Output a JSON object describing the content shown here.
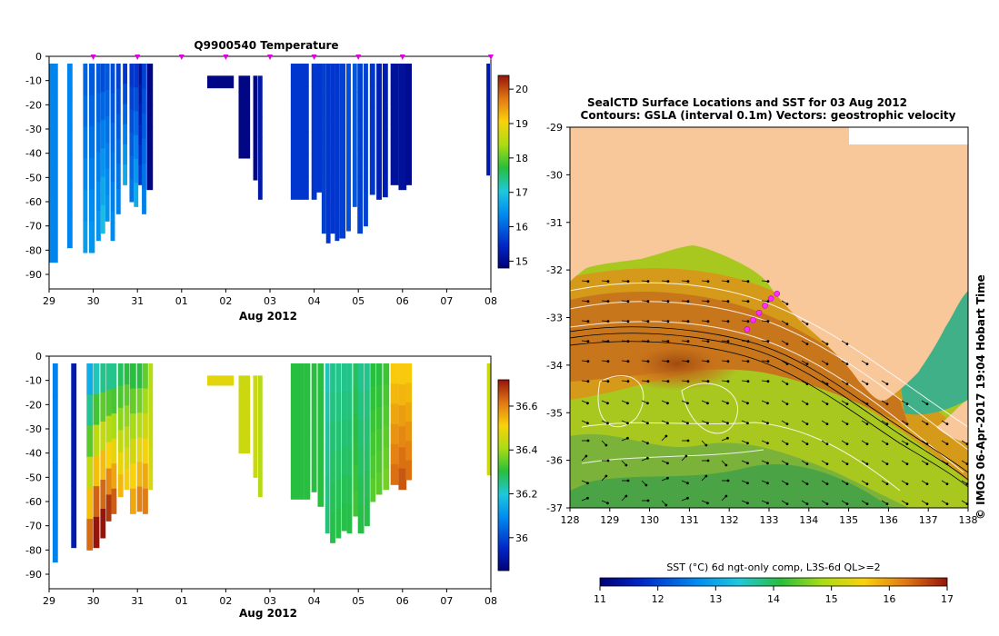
{
  "page": {
    "credit": "© IMOS 06-Apr-2017 19:04 Hobart Time"
  },
  "chart_data": [
    {
      "id": "temperature-section",
      "type": "heatmap",
      "title": "Q9900540  Temperature",
      "xlabel": "Aug 2012",
      "ylabel": "",
      "x_ticks": [
        "29",
        "30",
        "31",
        "01",
        "02",
        "03",
        "04",
        "05",
        "06",
        "07",
        "08"
      ],
      "y_ticks": [
        0,
        -10,
        -20,
        -30,
        -40,
        -50,
        -60,
        -70,
        -80,
        -90
      ],
      "ylim": [
        -96,
        0
      ],
      "variable": "Temperature",
      "units": "°C",
      "colorbar": {
        "min": 14.8,
        "max": 20.4,
        "ticks": [
          15,
          16,
          17,
          18,
          19,
          20
        ]
      },
      "profile_markers_day": [
        1,
        2,
        3,
        4,
        5,
        6,
        7,
        8,
        10
      ],
      "profiles": [
        {
          "day": 0.1,
          "width": 0.2,
          "top": -3,
          "bottom": -85,
          "value": 16.3,
          "trend": 0
        },
        {
          "day": 0.47,
          "width": 0.12,
          "top": -3,
          "bottom": -79,
          "value": 16.3,
          "trend": 0
        },
        {
          "day": 0.82,
          "width": 0.1,
          "top": -3,
          "bottom": -81,
          "value": 16.0,
          "trend": 0.1
        },
        {
          "day": 0.97,
          "width": 0.13,
          "top": -3,
          "bottom": -81,
          "value": 15.9,
          "trend": 0.1
        },
        {
          "day": 1.12,
          "width": 0.1,
          "top": -3,
          "bottom": -76,
          "value": 15.9,
          "trend": 0.1
        },
        {
          "day": 1.22,
          "width": 0.1,
          "top": -3,
          "bottom": -73,
          "value": 15.8,
          "trend": 0.2
        },
        {
          "day": 1.32,
          "width": 0.1,
          "top": -3,
          "bottom": -68,
          "value": 15.9,
          "trend": 0.1
        },
        {
          "day": 1.44,
          "width": 0.1,
          "top": -3,
          "bottom": -76,
          "value": 15.8,
          "trend": 0.1
        },
        {
          "day": 1.57,
          "width": 0.1,
          "top": -3,
          "bottom": -65,
          "value": 15.7,
          "trend": 0.1
        },
        {
          "day": 1.72,
          "width": 0.1,
          "top": -3,
          "bottom": -53,
          "value": 15.6,
          "trend": 0.2
        },
        {
          "day": 1.87,
          "width": 0.1,
          "top": -3,
          "bottom": -60,
          "value": 15.6,
          "trend": 0.1
        },
        {
          "day": 1.97,
          "width": 0.1,
          "top": -3,
          "bottom": -62,
          "value": 15.6,
          "trend": 0.2
        },
        {
          "day": 2.07,
          "width": 0.1,
          "top": -3,
          "bottom": -53,
          "value": 15.1,
          "trend": 0.1
        },
        {
          "day": 2.15,
          "width": 0.1,
          "top": -3,
          "bottom": -65,
          "value": 15.7,
          "trend": 0.1
        },
        {
          "day": 2.28,
          "width": 0.14,
          "top": -3,
          "bottom": -55,
          "value": 14.9,
          "trend": 0
        },
        {
          "day": 3.88,
          "width": 0.6,
          "top": -8,
          "bottom": -13,
          "value": 14.9,
          "trend": 0
        },
        {
          "day": 4.42,
          "width": 0.26,
          "top": -8,
          "bottom": -42,
          "value": 14.9,
          "trend": 0
        },
        {
          "day": 4.67,
          "width": 0.1,
          "top": -8,
          "bottom": -51,
          "value": 14.9,
          "trend": 0
        },
        {
          "day": 4.78,
          "width": 0.1,
          "top": -8,
          "bottom": -59,
          "value": 15.2,
          "trend": 0
        },
        {
          "day": 5.62,
          "width": 0.3,
          "top": -3,
          "bottom": -59,
          "value": 15.6,
          "trend": 0
        },
        {
          "day": 5.82,
          "width": 0.12,
          "top": -3,
          "bottom": -59,
          "value": 15.6,
          "trend": 0
        },
        {
          "day": 6.0,
          "width": 0.12,
          "top": -3,
          "bottom": -59,
          "value": 15.6,
          "trend": 0
        },
        {
          "day": 6.12,
          "width": 0.12,
          "top": -3,
          "bottom": -56,
          "value": 15.6,
          "trend": 0
        },
        {
          "day": 6.22,
          "width": 0.1,
          "top": -3,
          "bottom": -73,
          "value": 15.7,
          "trend": 0
        },
        {
          "day": 6.32,
          "width": 0.1,
          "top": -3,
          "bottom": -77,
          "value": 15.6,
          "trend": 0
        },
        {
          "day": 6.42,
          "width": 0.1,
          "top": -3,
          "bottom": -73,
          "value": 15.6,
          "trend": 0
        },
        {
          "day": 6.52,
          "width": 0.1,
          "top": -3,
          "bottom": -76,
          "value": 15.6,
          "trend": 0
        },
        {
          "day": 6.64,
          "width": 0.14,
          "top": -3,
          "bottom": -75,
          "value": 15.7,
          "trend": 0
        },
        {
          "day": 6.78,
          "width": 0.1,
          "top": -3,
          "bottom": -72,
          "value": 15.8,
          "trend": 0
        },
        {
          "day": 6.92,
          "width": 0.1,
          "top": -3,
          "bottom": -62,
          "value": 15.9,
          "trend": 0
        },
        {
          "day": 7.04,
          "width": 0.12,
          "top": -3,
          "bottom": -73,
          "value": 15.7,
          "trend": 0
        },
        {
          "day": 7.17,
          "width": 0.1,
          "top": -3,
          "bottom": -70,
          "value": 15.7,
          "trend": 0
        },
        {
          "day": 7.32,
          "width": 0.12,
          "top": -3,
          "bottom": -57,
          "value": 15.6,
          "trend": 0
        },
        {
          "day": 7.47,
          "width": 0.12,
          "top": -3,
          "bottom": -59,
          "value": 15.3,
          "trend": 0
        },
        {
          "day": 7.61,
          "width": 0.12,
          "top": -3,
          "bottom": -58,
          "value": 15.3,
          "trend": 0
        },
        {
          "day": 7.82,
          "width": 0.18,
          "top": -3,
          "bottom": -53,
          "value": 15.1,
          "trend": 0
        },
        {
          "day": 8.0,
          "width": 0.18,
          "top": -3,
          "bottom": -55,
          "value": 15.1,
          "trend": 0
        },
        {
          "day": 8.14,
          "width": 0.14,
          "top": -3,
          "bottom": -53,
          "value": 15.0,
          "trend": 0
        },
        {
          "day": 9.94,
          "width": 0.08,
          "top": -3,
          "bottom": -49,
          "value": 15.2,
          "trend": 0
        }
      ]
    },
    {
      "id": "salinity-section",
      "type": "heatmap",
      "title": "",
      "xlabel": "Aug 2012",
      "ylabel": "",
      "x_ticks": [
        "29",
        "30",
        "31",
        "01",
        "02",
        "03",
        "04",
        "05",
        "06",
        "07",
        "08"
      ],
      "y_ticks": [
        0,
        -10,
        -20,
        -30,
        -40,
        -50,
        -60,
        -70,
        -80,
        -90
      ],
      "ylim": [
        -96,
        0
      ],
      "variable": "Salinity",
      "units": "",
      "colorbar": {
        "min": 35.85,
        "max": 36.72,
        "ticks": [
          36.0,
          36.2,
          36.4,
          36.6
        ]
      },
      "profiles": [
        {
          "day": 0.14,
          "width": 0.12,
          "top": -3,
          "bottom": -85,
          "value": 36.08,
          "trend": 0
        },
        {
          "day": 0.56,
          "width": 0.12,
          "top": -3,
          "bottom": -79,
          "value": 35.92,
          "trend": 0
        },
        {
          "day": 0.92,
          "width": 0.14,
          "top": -3,
          "bottom": -80,
          "value": 36.15,
          "trend": 0.55
        },
        {
          "day": 1.07,
          "width": 0.14,
          "top": -3,
          "bottom": -79,
          "value": 36.22,
          "trend": 0.6
        },
        {
          "day": 1.22,
          "width": 0.12,
          "top": -3,
          "bottom": -75,
          "value": 36.25,
          "trend": 0.55
        },
        {
          "day": 1.35,
          "width": 0.12,
          "top": -3,
          "bottom": -68,
          "value": 36.25,
          "trend": 0.5
        },
        {
          "day": 1.47,
          "width": 0.12,
          "top": -3,
          "bottom": -65,
          "value": 36.25,
          "trend": 0.45
        },
        {
          "day": 1.62,
          "width": 0.12,
          "top": -3,
          "bottom": -58,
          "value": 36.28,
          "trend": 0.3
        },
        {
          "day": 1.76,
          "width": 0.12,
          "top": -3,
          "bottom": -55,
          "value": 36.3,
          "trend": 0.25
        },
        {
          "day": 1.9,
          "width": 0.14,
          "top": -3,
          "bottom": -65,
          "value": 36.3,
          "trend": 0.3
        },
        {
          "day": 2.05,
          "width": 0.12,
          "top": -3,
          "bottom": -64,
          "value": 36.3,
          "trend": 0.35
        },
        {
          "day": 2.18,
          "width": 0.12,
          "top": -3,
          "bottom": -65,
          "value": 36.35,
          "trend": 0.3
        },
        {
          "day": 2.3,
          "width": 0.1,
          "top": -3,
          "bottom": -55,
          "value": 36.42,
          "trend": 0.05
        },
        {
          "day": 3.88,
          "width": 0.6,
          "top": -8,
          "bottom": -12,
          "value": 36.48,
          "trend": 0
        },
        {
          "day": 4.42,
          "width": 0.26,
          "top": -8,
          "bottom": -40,
          "value": 36.45,
          "trend": 0
        },
        {
          "day": 4.67,
          "width": 0.1,
          "top": -8,
          "bottom": -50,
          "value": 36.45,
          "trend": 0
        },
        {
          "day": 4.78,
          "width": 0.1,
          "top": -8,
          "bottom": -58,
          "value": 36.42,
          "trend": 0
        },
        {
          "day": 5.62,
          "width": 0.3,
          "top": -3,
          "bottom": -59,
          "value": 36.3,
          "trend": 0
        },
        {
          "day": 5.84,
          "width": 0.14,
          "top": -3,
          "bottom": -59,
          "value": 36.3,
          "trend": 0
        },
        {
          "day": 6.0,
          "width": 0.12,
          "top": -3,
          "bottom": -56,
          "value": 36.3,
          "trend": 0
        },
        {
          "day": 6.15,
          "width": 0.14,
          "top": -3,
          "bottom": -62,
          "value": 36.3,
          "trend": 0
        },
        {
          "day": 6.3,
          "width": 0.1,
          "top": -3,
          "bottom": -73,
          "value": 36.22,
          "trend": 0.05
        },
        {
          "day": 6.42,
          "width": 0.12,
          "top": -3,
          "bottom": -77,
          "value": 36.25,
          "trend": 0.05
        },
        {
          "day": 6.55,
          "width": 0.12,
          "top": -3,
          "bottom": -75,
          "value": 36.25,
          "trend": 0.05
        },
        {
          "day": 6.68,
          "width": 0.12,
          "top": -3,
          "bottom": -72,
          "value": 36.25,
          "trend": 0.05
        },
        {
          "day": 6.8,
          "width": 0.12,
          "top": -3,
          "bottom": -73,
          "value": 36.25,
          "trend": 0.05
        },
        {
          "day": 6.94,
          "width": 0.12,
          "top": -3,
          "bottom": -66,
          "value": 36.28,
          "trend": 0.05
        },
        {
          "day": 7.06,
          "width": 0.14,
          "top": -3,
          "bottom": -73,
          "value": 36.25,
          "trend": 0.05
        },
        {
          "day": 7.2,
          "width": 0.12,
          "top": -3,
          "bottom": -70,
          "value": 36.25,
          "trend": 0.05
        },
        {
          "day": 7.33,
          "width": 0.12,
          "top": -3,
          "bottom": -60,
          "value": 36.3,
          "trend": 0.05
        },
        {
          "day": 7.47,
          "width": 0.14,
          "top": -3,
          "bottom": -57,
          "value": 36.3,
          "trend": 0.05
        },
        {
          "day": 7.63,
          "width": 0.14,
          "top": -3,
          "bottom": -55,
          "value": 36.32,
          "trend": 0.05
        },
        {
          "day": 7.82,
          "width": 0.18,
          "top": -3,
          "bottom": -53,
          "value": 36.52,
          "trend": 0.12
        },
        {
          "day": 8.0,
          "width": 0.18,
          "top": -3,
          "bottom": -55,
          "value": 36.52,
          "trend": 0.15
        },
        {
          "day": 8.14,
          "width": 0.14,
          "top": -3,
          "bottom": -51,
          "value": 36.52,
          "trend": 0.12
        },
        {
          "day": 9.95,
          "width": 0.08,
          "top": -3,
          "bottom": -49,
          "value": 36.45,
          "trend": 0
        }
      ]
    },
    {
      "id": "sst-map",
      "type": "heatmap",
      "title": "SealCTD Surface Locations and SST for 03 Aug 2012",
      "subtitle": "Contours: GSLA (interval 0.1m)  Vectors: geostrophic velocity",
      "xlabel": "",
      "ylabel": "",
      "xlim": [
        128,
        138
      ],
      "ylim": [
        -37,
        -29
      ],
      "x_ticks": [
        "128",
        "129",
        "130",
        "131",
        "132",
        "133",
        "134",
        "135",
        "136",
        "137",
        "138"
      ],
      "y_ticks": [
        "-29",
        "-30",
        "-31",
        "-32",
        "-33",
        "-34",
        "-35",
        "-36",
        "-37"
      ],
      "colorbar": {
        "label": "SST (°C) 6d ngt-only comp, L3S-6d QL>=2",
        "min": 11,
        "max": 17,
        "ticks": [
          "11",
          "12",
          "13",
          "14",
          "15",
          "16",
          "17"
        ]
      },
      "seal_track": [
        [
          132.45,
          -33.25
        ],
        [
          132.6,
          -33.05
        ],
        [
          132.75,
          -32.9
        ],
        [
          132.9,
          -32.75
        ],
        [
          133.05,
          -32.6
        ],
        [
          133.2,
          -32.5
        ]
      ]
    }
  ]
}
